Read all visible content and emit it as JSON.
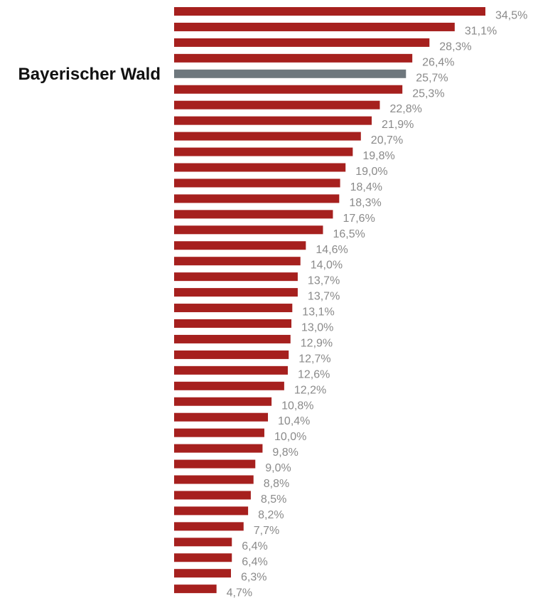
{
  "chart_data": {
    "type": "bar",
    "orientation": "horizontal",
    "highlight_label": "Bayerischer Wald",
    "highlight_index": 4,
    "value_suffix": "%",
    "values": [
      34.5,
      31.1,
      28.3,
      26.4,
      25.7,
      25.3,
      22.8,
      21.9,
      20.7,
      19.8,
      19.0,
      18.4,
      18.3,
      17.6,
      16.5,
      14.6,
      14.0,
      13.7,
      13.7,
      13.1,
      13.0,
      12.9,
      12.7,
      12.6,
      12.2,
      10.8,
      10.4,
      10.0,
      9.8,
      9.0,
      8.8,
      8.5,
      8.2,
      7.7,
      6.4,
      6.4,
      6.3,
      4.7
    ],
    "value_labels": [
      "34,5%",
      "31,1%",
      "28,3%",
      "26,4%",
      "25,7%",
      "25,3%",
      "22,8%",
      "21,9%",
      "20,7%",
      "19,8%",
      "19,0%",
      "18,4%",
      "18,3%",
      "17,6%",
      "16,5%",
      "14,6%",
      "14,0%",
      "13,7%",
      "13,7%",
      "13,1%",
      "13,0%",
      "12,9%",
      "12,7%",
      "12,6%",
      "12,2%",
      "10,8%",
      "10,4%",
      "10,0%",
      "9,8%",
      "9,0%",
      "8,8%",
      "8,5%",
      "8,2%",
      "7,7%",
      "6,4%",
      "6,4%",
      "6,3%",
      "4,7%"
    ],
    "xlim": [
      0,
      34.5
    ],
    "grid": false,
    "colors": {
      "bar": "#A6201E",
      "highlight": "#6E777D",
      "value_label": "#8A8A8A",
      "highlight_label": "#111111"
    }
  }
}
